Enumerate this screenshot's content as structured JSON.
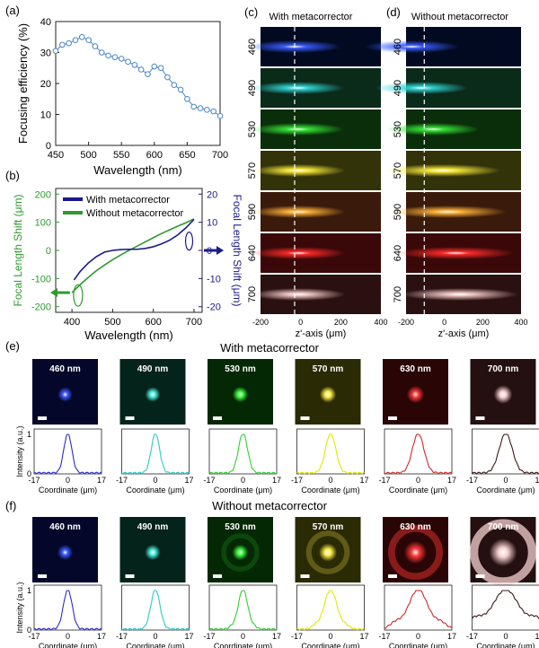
{
  "panels": {
    "a": {
      "label": "(a)"
    },
    "b": {
      "label": "(b)"
    },
    "c": {
      "label": "(c)",
      "title": "With metacorrector"
    },
    "d": {
      "label": "(d)",
      "title": "Without metacorrector"
    },
    "e": {
      "label": "(e)",
      "title": "With metacorrector"
    },
    "f": {
      "label": "(f)",
      "title": "Without metacorrector"
    }
  },
  "colors": {
    "series_green": "#2e9a2e",
    "series_navy": "#1a1a8c",
    "marker_blue": "#4a86c8",
    "dashed": "#ffffff"
  },
  "chart_data": [
    {
      "id": "a",
      "type": "line",
      "title": "",
      "xlabel": "Wavelength (nm)",
      "ylabel": "Focusing efficiency (%)",
      "xlim": [
        450,
        700
      ],
      "ylim": [
        0,
        40
      ],
      "xticks": [
        450,
        500,
        550,
        600,
        650,
        700
      ],
      "yticks": [
        0,
        10,
        20,
        30,
        40
      ],
      "series": [
        {
          "name": "efficiency",
          "x": [
            450,
            460,
            470,
            480,
            490,
            500,
            510,
            520,
            530,
            540,
            550,
            560,
            570,
            580,
            590,
            600,
            610,
            620,
            630,
            640,
            650,
            660,
            670,
            680,
            690,
            700
          ],
          "y": [
            30.5,
            32.5,
            33,
            34,
            35,
            34,
            32,
            30,
            29,
            28.5,
            28,
            27,
            26,
            24.5,
            23,
            25.5,
            25,
            22,
            19.5,
            18,
            15,
            12.5,
            12,
            11.5,
            11,
            9.5
          ]
        }
      ]
    },
    {
      "id": "b",
      "type": "line",
      "xlabel": "Wavelength (nm)",
      "ylabel_left": "Focal Length Shift (μm)",
      "ylabel_right": "Focal Length Shift (μm)",
      "xlim": [
        360,
        720
      ],
      "ylim_left": [
        -220,
        220
      ],
      "ylim_right": [
        -22,
        22
      ],
      "xticks": [
        400,
        500,
        600,
        700
      ],
      "yticks_left": [
        -200,
        -100,
        0,
        100,
        200
      ],
      "yticks_right": [
        -20,
        -10,
        0,
        10,
        20
      ],
      "legend": [
        "With metacorrector",
        "Without metacorrector"
      ],
      "series": [
        {
          "name": "Without metacorrector",
          "axis": "left",
          "x": [
            400,
            420,
            440,
            460,
            480,
            500,
            520,
            540,
            560,
            580,
            600,
            620,
            640,
            660,
            680,
            700
          ],
          "y": [
            -150,
            -122,
            -96,
            -72,
            -52,
            -33,
            -16,
            0,
            15,
            30,
            45,
            60,
            73,
            86,
            98,
            112
          ]
        },
        {
          "name": "With metacorrector",
          "axis": "right",
          "x": [
            405,
            420,
            440,
            460,
            480,
            500,
            520,
            540,
            560,
            580,
            600,
            620,
            640,
            660,
            680,
            700
          ],
          "y": [
            -10.5,
            -7.5,
            -4.5,
            -2.2,
            -0.6,
            0,
            0.3,
            0.4,
            0.4,
            0.7,
            1.3,
            2.3,
            3.6,
            5.5,
            8,
            11
          ]
        }
      ]
    },
    {
      "id": "c_d",
      "type": "heatmap",
      "xlabel": "z'-axis (μm)",
      "xlim": [
        -200,
        400
      ],
      "xticks": [
        -200,
        0,
        200,
        400
      ],
      "rows": [
        {
          "label": "460",
          "color": "#3a5cff"
        },
        {
          "label": "490",
          "color": "#2fd6d6"
        },
        {
          "label": "530",
          "color": "#35e535"
        },
        {
          "label": "570",
          "color": "#ffef3a"
        },
        {
          "label": "590",
          "color": "#ffb43a"
        },
        {
          "label": "640",
          "color": "#ff2a2a"
        },
        {
          "label": "700",
          "color": "#f3c8c8"
        }
      ],
      "c_centers": [
        -30,
        -15,
        -15,
        -10,
        -10,
        -10,
        -10
      ],
      "d_centers": [
        -170,
        -120,
        -60,
        -10,
        20,
        60,
        80
      ],
      "c_backgrounds": [
        "#020a22",
        "#0a2a1a",
        "#0a2e0a",
        "#33330a",
        "#3a1a0a",
        "#3a0808",
        "#2a1010"
      ],
      "d_backgrounds": [
        "#020a22",
        "#0a2a1a",
        "#0a2e0a",
        "#33330a",
        "#3a1a0a",
        "#3a0808",
        "#2a1010"
      ],
      "dashed_x_c": -30,
      "dashed_x_d": -105
    },
    {
      "id": "e_f",
      "type": "line",
      "xlabel": "Coordinate (μm)",
      "ylabel": "Intensity (a.u.)",
      "xlim": [
        -17,
        17
      ],
      "xticks": [
        -17,
        0,
        17
      ],
      "ylim": [
        0,
        1
      ],
      "yticks": [
        0,
        1
      ],
      "wavelength_labels": [
        "460 nm",
        "490 nm",
        "530 nm",
        "570 nm",
        "630 nm",
        "700 nm"
      ],
      "colors": [
        "#2b2bcf",
        "#2dc8c8",
        "#33cc33",
        "#e6e600",
        "#cc2a2a",
        "#3a1a1a"
      ],
      "spot_colors": [
        "#3b5bff",
        "#4ef0e0",
        "#3cff3c",
        "#fff04a",
        "#ff3838",
        "#f5d0d0"
      ],
      "widths_e": [
        2.0,
        2.1,
        2.3,
        2.6,
        2.9,
        3.3
      ],
      "widths_f": [
        2.2,
        2.3,
        2.4,
        3.2,
        4.8,
        6.5
      ],
      "rings_f": [
        0,
        0,
        0.15,
        0.25,
        0.45,
        0.75
      ]
    }
  ]
}
